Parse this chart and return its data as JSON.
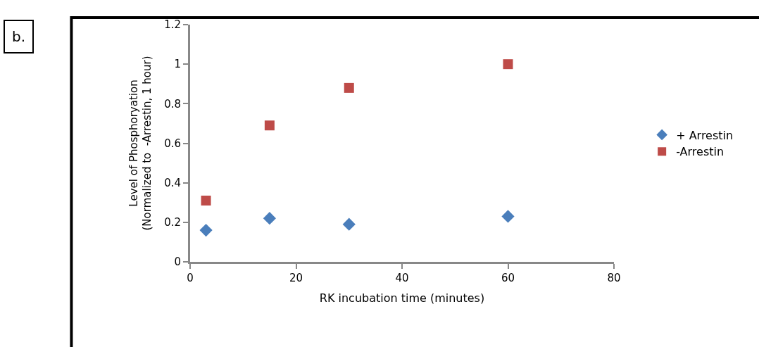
{
  "chart_data": {
    "type": "scatter",
    "xlabel": "RK incubation time (minutes)",
    "ylabel": "Level of Phosphoryation\n(Normalized to  -Arrestin, 1 hour)",
    "annotations": [
      "b."
    ],
    "x": [
      3,
      15,
      30,
      60
    ],
    "series": [
      {
        "name": "+ Arrestin",
        "color": "#4a7ebb",
        "marker": "diamond",
        "values": [
          0.16,
          0.22,
          0.19,
          0.23
        ]
      },
      {
        "name": "-Arrestin",
        "color": "#be4b48",
        "marker": "square",
        "values": [
          0.31,
          0.69,
          0.88,
          1.0
        ]
      }
    ],
    "xlim": [
      0,
      80
    ],
    "xticks": [
      0,
      20,
      40,
      60,
      80
    ],
    "ylim": [
      0,
      1.2
    ],
    "yticks": [
      0,
      0.2,
      0.4,
      0.6,
      0.8,
      1,
      1.2
    ],
    "legend": "right"
  }
}
